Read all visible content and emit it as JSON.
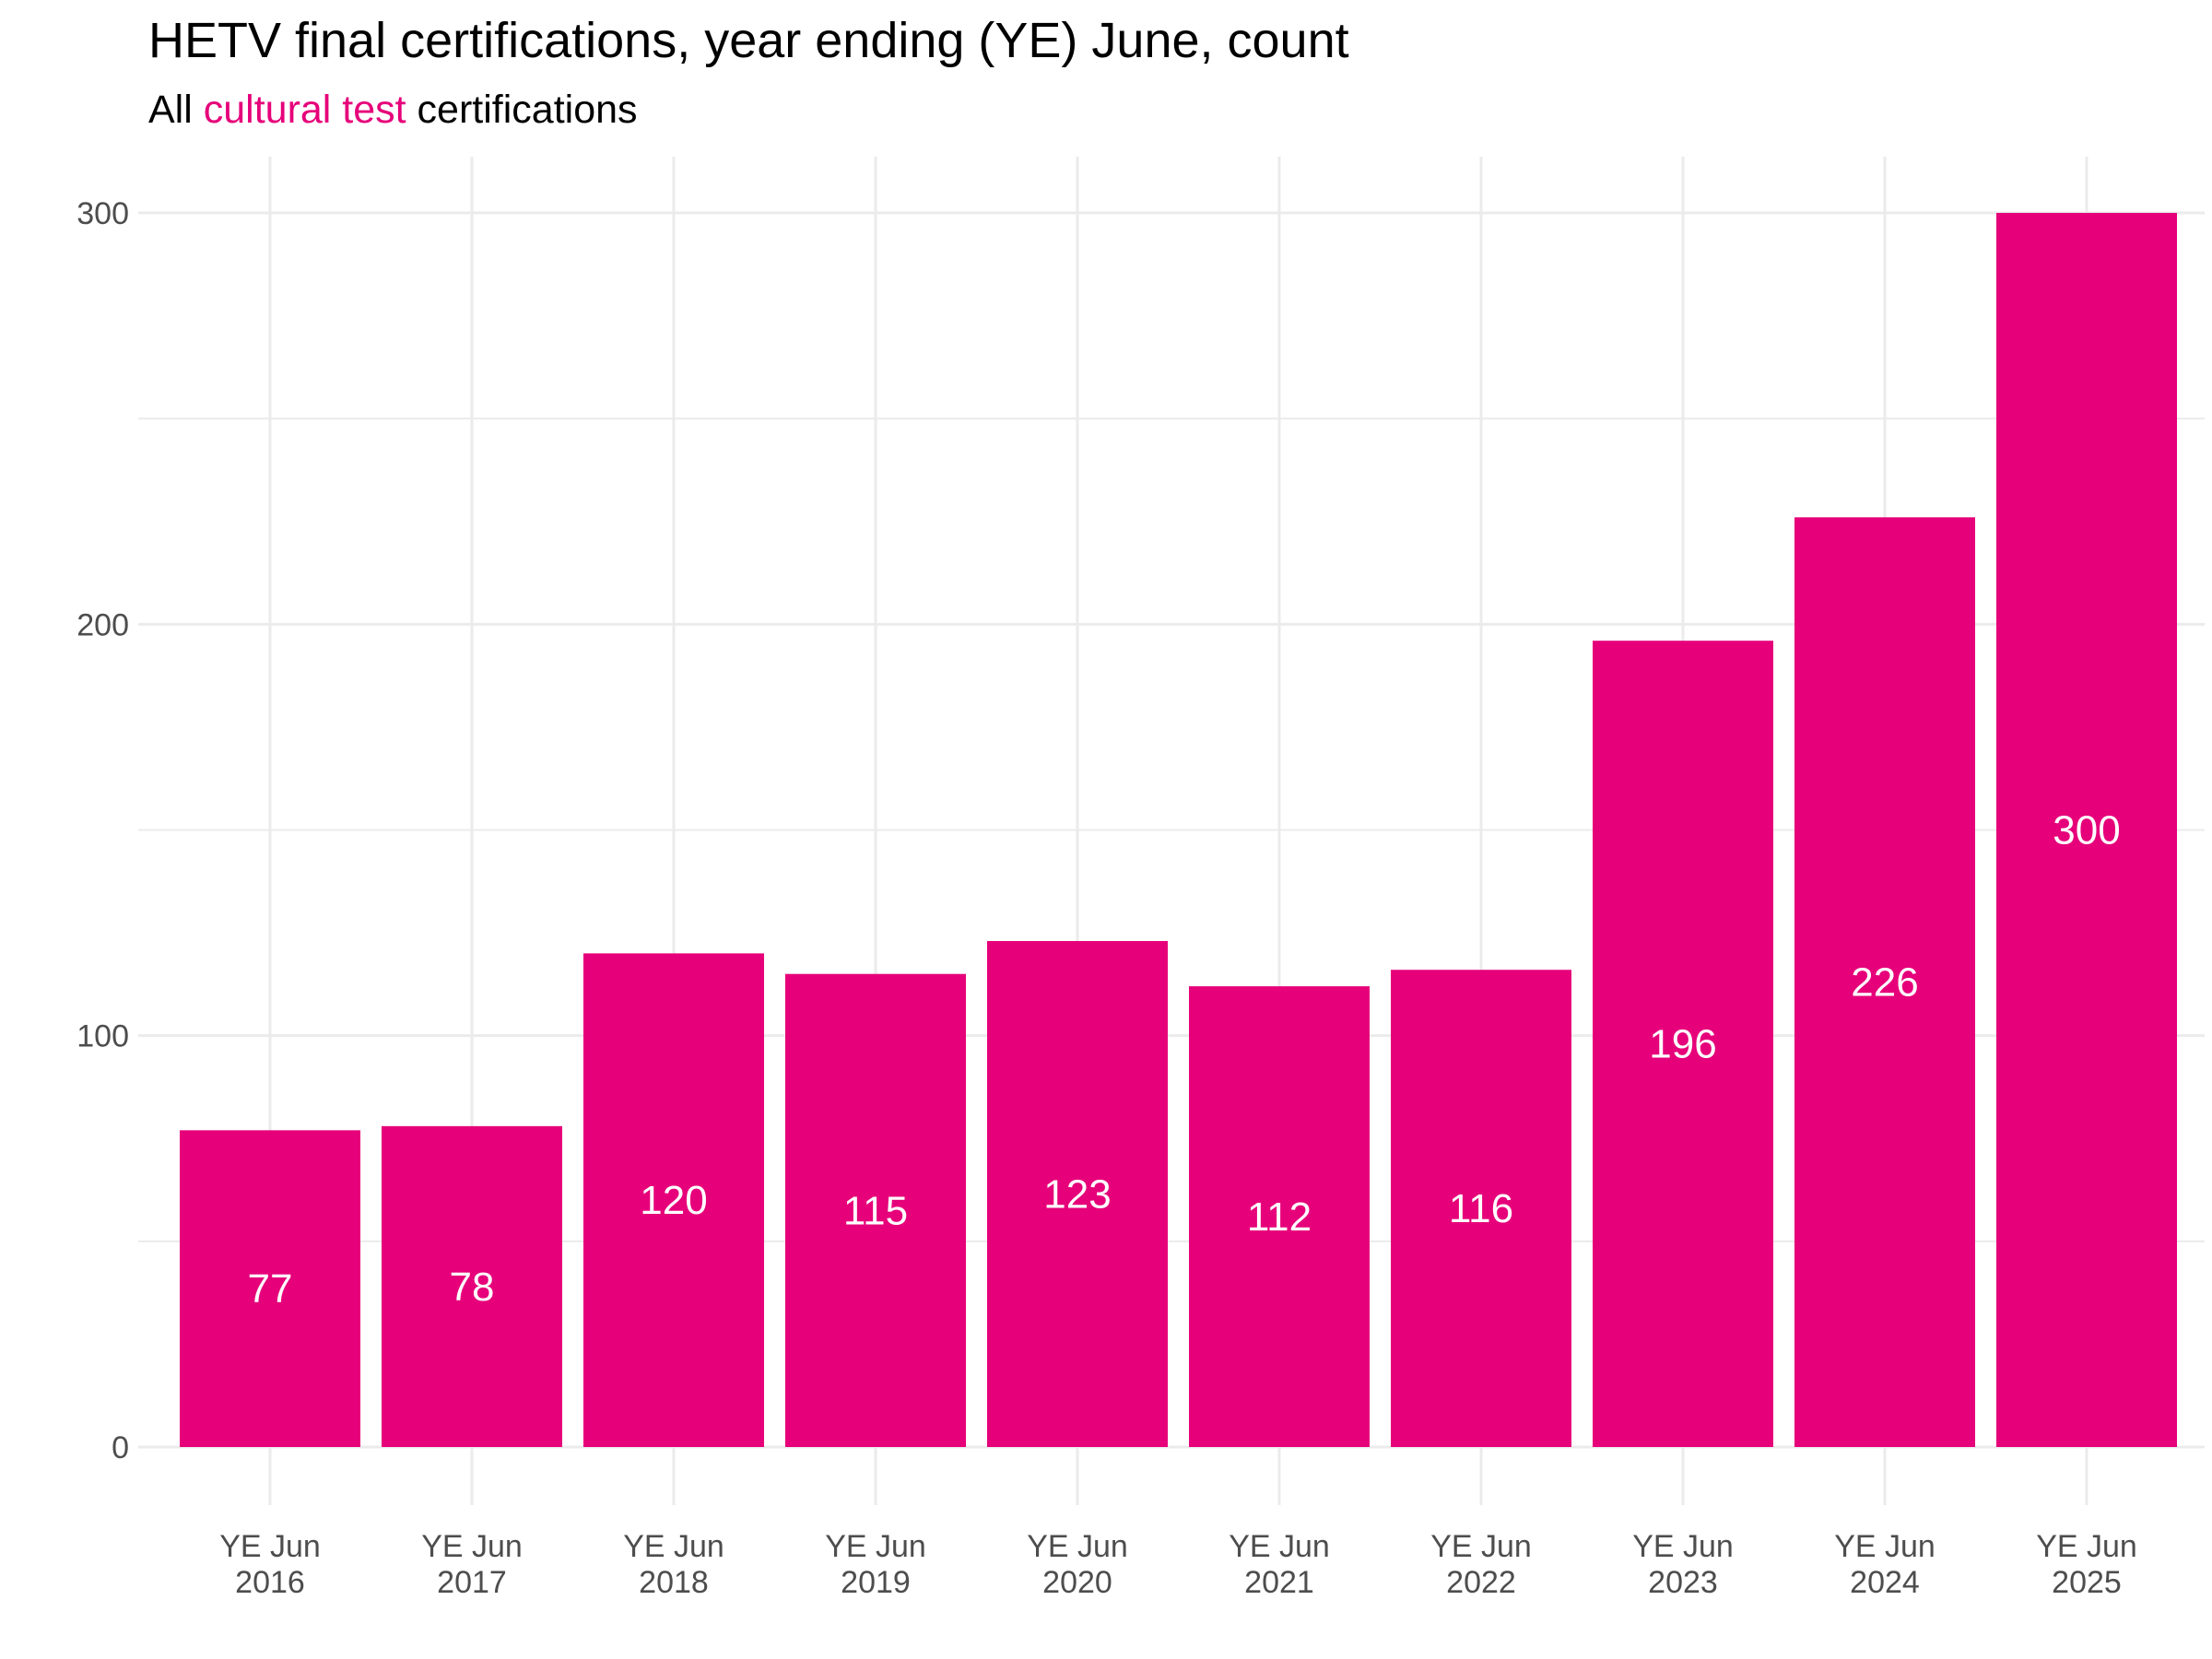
{
  "chart_data": {
    "type": "bar",
    "title": "HETV final certifications, year ending (YE) June, count",
    "subtitle": {
      "prefix": "All ",
      "highlight": "cultural test",
      "suffix": " certifications"
    },
    "categories": [
      [
        "YE Jun",
        "2016"
      ],
      [
        "YE Jun",
        "2017"
      ],
      [
        "YE Jun",
        "2018"
      ],
      [
        "YE Jun",
        "2019"
      ],
      [
        "YE Jun",
        "2020"
      ],
      [
        "YE Jun",
        "2021"
      ],
      [
        "YE Jun",
        "2022"
      ],
      [
        "YE Jun",
        "2023"
      ],
      [
        "YE Jun",
        "2024"
      ],
      [
        "YE Jun",
        "2025"
      ]
    ],
    "values": [
      77,
      78,
      120,
      115,
      123,
      112,
      116,
      196,
      226,
      300
    ],
    "ylim": [
      0,
      300
    ],
    "yticks": [
      0,
      100,
      200,
      300
    ],
    "xlabel": "",
    "ylabel": "",
    "grid": true,
    "legend": "none",
    "colors": {
      "bar": "#e6007a",
      "highlight_text": "#e6007a",
      "bar_label": "#ffffff",
      "grid": "#ebebeb"
    }
  }
}
